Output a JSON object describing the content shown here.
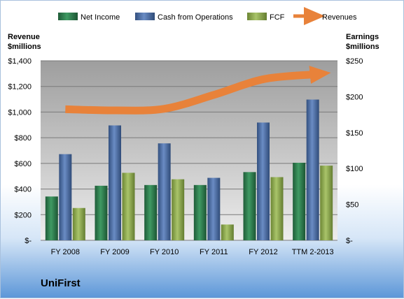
{
  "company": "UniFirst",
  "chart_data": {
    "type": "bar",
    "categories": [
      "FY 2008",
      "FY 2009",
      "FY 2010",
      "FY 2011",
      "FY 2012",
      "TTM 2-2013"
    ],
    "series": [
      {
        "name": "Net Income",
        "axis": "right",
        "color": "#2e7d4f",
        "values": [
          61,
          76,
          77,
          77,
          95,
          108
        ]
      },
      {
        "name": "Cash from Operations",
        "axis": "right",
        "color": "#4b6fa8",
        "values": [
          120,
          160,
          135,
          87,
          164,
          196
        ]
      },
      {
        "name": "FCF",
        "axis": "right",
        "color": "#8faa4a",
        "values": [
          45,
          94,
          85,
          22,
          88,
          104
        ]
      },
      {
        "name": "Revenues",
        "axis": "left",
        "type": "line",
        "color": "#e8823a",
        "values": [
          1022,
          1013,
          1026,
          1134,
          1256,
          1293
        ]
      }
    ],
    "left_axis": {
      "title_lines": [
        "Revenue",
        "$millions"
      ],
      "ylim": [
        0,
        1400
      ],
      "tick_labels": [
        "$-",
        "$200",
        "$400",
        "$600",
        "$800",
        "$1,000",
        "$1,200",
        "$1,400"
      ]
    },
    "right_axis": {
      "title_lines": [
        "Earnings",
        "$millions"
      ],
      "ylim": [
        0,
        250
      ],
      "tick_labels": [
        "$-",
        "$50",
        "$100",
        "$150",
        "$200",
        "$250"
      ]
    },
    "grid": true,
    "legend_position": "top"
  }
}
